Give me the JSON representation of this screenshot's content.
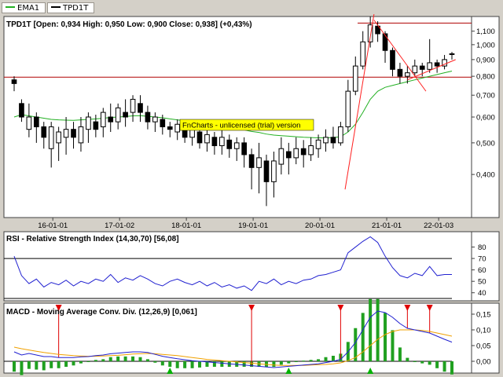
{
  "legend": {
    "items": [
      {
        "label": "EMA1",
        "color": "#22b022"
      },
      {
        "label": "TPD1T",
        "color": "#000000"
      }
    ]
  },
  "watermark": "FnCharts - unlicensed (trial) version",
  "price_panel": {
    "title": "TPD1T [Open: 0,934  High: 0,950  Low: 0,900  Close: 0,938] (+0,43%)",
    "y_ticks": [
      "1,100",
      "1,000",
      "0,900",
      "0,800",
      "0,700",
      "0,600",
      "0,500",
      "0,400"
    ],
    "x_ticks": [
      "16-01-01",
      "17-01-02",
      "18-01-01",
      "19-01-01",
      "20-01-01",
      "21-01-01",
      "22-01-03"
    ]
  },
  "rsi_panel": {
    "title": "RSI - Relative Strength Index (14,30,70) [56,08]",
    "y_ticks": [
      "80",
      "70",
      "60",
      "50",
      "40"
    ]
  },
  "macd_panel": {
    "title": "MACD - Moving Average Conv. Div. (12,26,9) [0,061]",
    "y_ticks": [
      "0,15",
      "0,10",
      "0,05",
      "0,00"
    ]
  },
  "colors": {
    "ema": "#22b022",
    "candle_up": "#ffffff",
    "candle_down": "#000000",
    "horizontal_line": "#b00000",
    "trend_line": "#ff2020",
    "rsi_line": "#2020d0",
    "macd_line": "#2020d0",
    "signal_line": "#f0a000",
    "histogram": "#20a020",
    "sell_arrow": "#e00000",
    "buy_arrow": "#00b000",
    "watermark_bg": "#ffff00"
  },
  "chart_data": [
    {
      "type": "candlestick",
      "title": "TPD1T [Open: 0,934  High: 0,950  Low: 0,900  Close: 0,938] (+0,43%)",
      "y_scale": "log",
      "ylim": [
        0.3,
        1.2
      ],
      "x_tick_labels": [
        "16-01-01",
        "17-01-02",
        "18-01-01",
        "19-01-01",
        "20-01-01",
        "21-01-01",
        "22-01-03"
      ],
      "horizontal_lines": [
        1.165,
        0.795
      ],
      "candles": [
        [
          0.78,
          0.76,
          0.8,
          0.72
        ],
        [
          0.66,
          0.6,
          0.68,
          0.58
        ],
        [
          0.55,
          0.6,
          0.66,
          0.52
        ],
        [
          0.6,
          0.56,
          0.62,
          0.5
        ],
        [
          0.56,
          0.52,
          0.58,
          0.48
        ],
        [
          0.48,
          0.56,
          0.58,
          0.42
        ],
        [
          0.5,
          0.54,
          0.56,
          0.44
        ],
        [
          0.52,
          0.55,
          0.6,
          0.46
        ],
        [
          0.55,
          0.52,
          0.58,
          0.48
        ],
        [
          0.5,
          0.56,
          0.6,
          0.47
        ],
        [
          0.55,
          0.6,
          0.62,
          0.5
        ],
        [
          0.58,
          0.55,
          0.61,
          0.52
        ],
        [
          0.56,
          0.62,
          0.64,
          0.52
        ],
        [
          0.6,
          0.58,
          0.66,
          0.54
        ],
        [
          0.58,
          0.64,
          0.66,
          0.55
        ],
        [
          0.62,
          0.6,
          0.68,
          0.56
        ],
        [
          0.62,
          0.68,
          0.7,
          0.58
        ],
        [
          0.66,
          0.62,
          0.7,
          0.58
        ],
        [
          0.62,
          0.58,
          0.65,
          0.55
        ],
        [
          0.58,
          0.6,
          0.62,
          0.54
        ],
        [
          0.59,
          0.56,
          0.61,
          0.53
        ],
        [
          0.56,
          0.55,
          0.58,
          0.52
        ],
        [
          0.54,
          0.57,
          0.59,
          0.51
        ],
        [
          0.56,
          0.52,
          0.58,
          0.5
        ],
        [
          0.52,
          0.55,
          0.57,
          0.49
        ],
        [
          0.54,
          0.5,
          0.56,
          0.48
        ],
        [
          0.5,
          0.53,
          0.56,
          0.47
        ],
        [
          0.52,
          0.49,
          0.54,
          0.46
        ],
        [
          0.49,
          0.52,
          0.55,
          0.46
        ],
        [
          0.51,
          0.48,
          0.53,
          0.45
        ],
        [
          0.48,
          0.5,
          0.52,
          0.44
        ],
        [
          0.5,
          0.46,
          0.52,
          0.42
        ],
        [
          0.46,
          0.42,
          0.48,
          0.36
        ],
        [
          0.42,
          0.45,
          0.5,
          0.35
        ],
        [
          0.44,
          0.38,
          0.46,
          0.32
        ],
        [
          0.38,
          0.44,
          0.47,
          0.34
        ],
        [
          0.43,
          0.48,
          0.52,
          0.4
        ],
        [
          0.47,
          0.45,
          0.5,
          0.4
        ],
        [
          0.45,
          0.48,
          0.52,
          0.43
        ],
        [
          0.48,
          0.46,
          0.51,
          0.42
        ],
        [
          0.46,
          0.49,
          0.52,
          0.44
        ],
        [
          0.48,
          0.51,
          0.53,
          0.45
        ],
        [
          0.5,
          0.52,
          0.55,
          0.47
        ],
        [
          0.52,
          0.5,
          0.56,
          0.48
        ],
        [
          0.5,
          0.56,
          0.58,
          0.49
        ],
        [
          0.56,
          0.72,
          0.78,
          0.54
        ],
        [
          0.72,
          0.86,
          0.92,
          0.7
        ],
        [
          0.86,
          1.02,
          1.1,
          0.84
        ],
        [
          1.02,
          1.15,
          1.22,
          0.98
        ],
        [
          1.14,
          1.08,
          1.18,
          1.02
        ],
        [
          1.08,
          0.96,
          1.1,
          0.88
        ],
        [
          0.96,
          0.84,
          0.98,
          0.8
        ],
        [
          0.84,
          0.8,
          0.88,
          0.76
        ],
        [
          0.8,
          0.82,
          0.86,
          0.76
        ],
        [
          0.82,
          0.86,
          0.9,
          0.8
        ],
        [
          0.86,
          0.84,
          0.88,
          0.8
        ],
        [
          0.84,
          0.88,
          1.04,
          0.82
        ],
        [
          0.88,
          0.86,
          0.9,
          0.82
        ],
        [
          0.86,
          0.9,
          0.93,
          0.84
        ],
        [
          0.934,
          0.938,
          0.95,
          0.9
        ]
      ],
      "ema": [
        0.6,
        0.61,
        0.605,
        0.6,
        0.595,
        0.59,
        0.588,
        0.587,
        0.586,
        0.588,
        0.59,
        0.592,
        0.595,
        0.598,
        0.6,
        0.602,
        0.605,
        0.606,
        0.603,
        0.6,
        0.597,
        0.592,
        0.588,
        0.584,
        0.58,
        0.575,
        0.571,
        0.566,
        0.562,
        0.558,
        0.553,
        0.548,
        0.542,
        0.538,
        0.532,
        0.528,
        0.526,
        0.524,
        0.522,
        0.52,
        0.519,
        0.518,
        0.518,
        0.519,
        0.522,
        0.54,
        0.57,
        0.62,
        0.68,
        0.72,
        0.74,
        0.75,
        0.76,
        0.77,
        0.78,
        0.79,
        0.8,
        0.81,
        0.82,
        0.83
      ]
    },
    {
      "type": "line",
      "title": "RSI - Relative Strength Index (14,30,70) [56,08]",
      "ylim": [
        35,
        90
      ],
      "reference_lines": [
        70,
        30
      ],
      "values": [
        72,
        55,
        48,
        52,
        45,
        49,
        47,
        51,
        46,
        50,
        48,
        52,
        50,
        56,
        49,
        53,
        51,
        55,
        52,
        48,
        46,
        50,
        52,
        49,
        47,
        50,
        46,
        49,
        45,
        47,
        44,
        46,
        42,
        50,
        48,
        52,
        47,
        50,
        48,
        51,
        52,
        55,
        56,
        58,
        60,
        75,
        80,
        85,
        89,
        84,
        72,
        62,
        55,
        53,
        57,
        55,
        63,
        55,
        56,
        56
      ]
    },
    {
      "type": "line+bar",
      "title": "MACD - Moving Average Conv. Div. (12,26,9) [0,061]",
      "ylim": [
        -0.03,
        0.17
      ],
      "macd": [
        0.03,
        0.02,
        0.025,
        0.02,
        0.015,
        0.015,
        0.012,
        0.012,
        0.012,
        0.014,
        0.015,
        0.018,
        0.02,
        0.024,
        0.026,
        0.028,
        0.03,
        0.03,
        0.028,
        0.022,
        0.016,
        0.012,
        0.008,
        0.005,
        0.002,
        0.0,
        -0.002,
        -0.004,
        -0.006,
        -0.008,
        -0.01,
        -0.012,
        -0.014,
        -0.016,
        -0.018,
        -0.02,
        -0.018,
        -0.016,
        -0.014,
        -0.012,
        -0.01,
        -0.008,
        -0.004,
        0.0,
        0.006,
        0.03,
        0.06,
        0.1,
        0.14,
        0.16,
        0.155,
        0.14,
        0.12,
        0.105,
        0.1,
        0.095,
        0.09,
        0.08,
        0.07,
        0.061
      ],
      "signal": [
        0.045,
        0.04,
        0.036,
        0.032,
        0.028,
        0.025,
        0.022,
        0.02,
        0.018,
        0.017,
        0.016,
        0.016,
        0.017,
        0.018,
        0.019,
        0.021,
        0.023,
        0.024,
        0.025,
        0.024,
        0.022,
        0.02,
        0.018,
        0.015,
        0.012,
        0.009,
        0.006,
        0.004,
        0.002,
        0.0,
        -0.002,
        -0.004,
        -0.006,
        -0.008,
        -0.01,
        -0.012,
        -0.013,
        -0.013,
        -0.013,
        -0.013,
        -0.012,
        -0.011,
        -0.01,
        -0.008,
        -0.005,
        0.002,
        0.012,
        0.03,
        0.05,
        0.07,
        0.085,
        0.095,
        0.1,
        0.1,
        0.1,
        0.098,
        0.095,
        0.09,
        0.085,
        0.08
      ],
      "sell_signals": [
        6,
        32,
        44,
        53,
        56
      ],
      "buy_signals": [
        21,
        37,
        48
      ]
    }
  ]
}
